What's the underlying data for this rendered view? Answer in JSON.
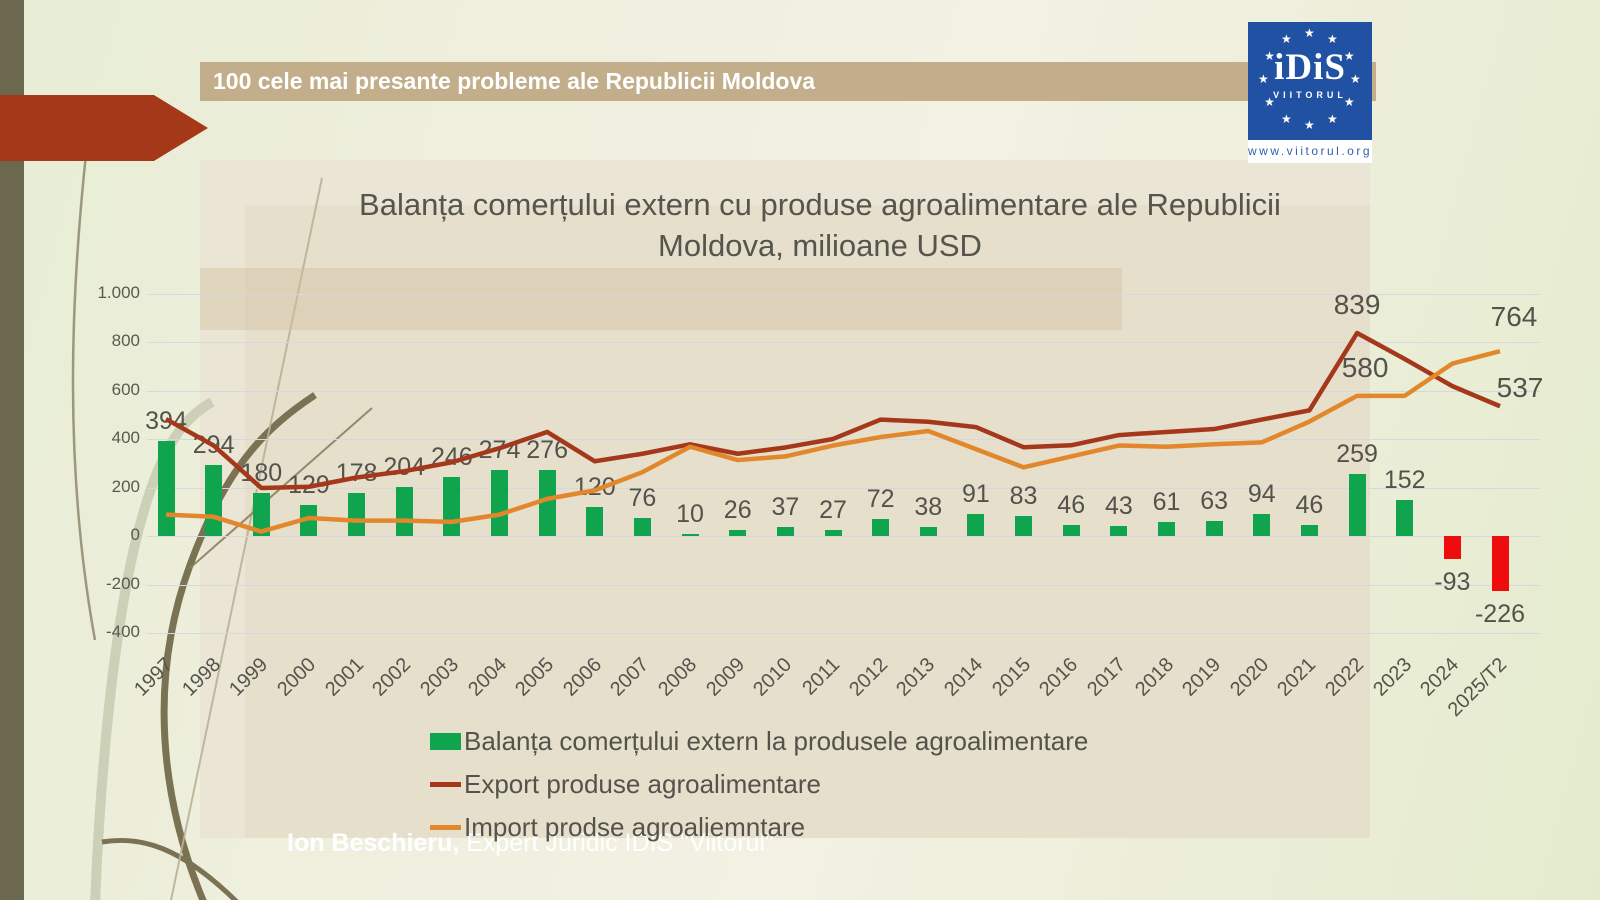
{
  "header": {
    "title": "100 cele mai presante probleme ale Republicii Moldova"
  },
  "logo": {
    "org": "iDiS",
    "suborg": "VIITORUL",
    "url": "www.viitorul.org"
  },
  "slide": {
    "title_line1": "Balanța comerțului extern cu  produse agroalimentare ale Republicii",
    "title_line2": "Moldova, milioane USD",
    "footer_name": "Ion Beschieru,",
    "footer_role": " Expert Juridic IDIS \"Viitorul\""
  },
  "chart_data": {
    "type": "bar+line",
    "title": "Balanța comerțului extern cu produse agroalimentare ale Republicii Moldova, milioane USD",
    "categories": [
      "1997",
      "1998",
      "1999",
      "2000",
      "2001",
      "2002",
      "2003",
      "2004",
      "2005",
      "2006",
      "2007",
      "2008",
      "2009",
      "2010",
      "2011",
      "2012",
      "2013",
      "2014",
      "2015",
      "2016",
      "2017",
      "2018",
      "2019",
      "2020",
      "2021",
      "2022",
      "2023",
      "2024",
      "2025/T2"
    ],
    "series": [
      {
        "name": "Balanța comerțului extern la produsele agroalimentare",
        "type": "bar",
        "values": [
          394,
          294,
          180,
          129,
          178,
          204,
          246,
          274,
          276,
          120,
          76,
          10,
          26,
          37,
          27,
          72,
          38,
          91,
          83,
          46,
          43,
          61,
          63,
          94,
          46,
          259,
          152,
          -93,
          -226
        ]
      },
      {
        "name": "Export produse agroalimentare",
        "type": "line",
        "values": [
          484,
          375,
          200,
          205,
          243,
          269,
          306,
          364,
          431,
          310,
          341,
          380,
          341,
          367,
          402,
          482,
          473,
          451,
          368,
          376,
          418,
          431,
          443,
          482,
          520,
          839,
          732,
          620,
          537
        ]
      },
      {
        "name": "Import prodse agroaliemntare",
        "type": "line",
        "values": [
          90,
          81,
          20,
          76,
          65,
          65,
          60,
          90,
          155,
          190,
          265,
          370,
          315,
          330,
          375,
          410,
          435,
          360,
          285,
          330,
          375,
          370,
          380,
          388,
          474,
          580,
          580,
          713,
          764
        ]
      }
    ],
    "line_labels": [
      {
        "series": "Export produse agroalimentare",
        "category": "2022",
        "value": 839
      },
      {
        "series": "Import prodse agroaliemntare",
        "category": "2022",
        "value": 580
      },
      {
        "series": "Import prodse agroaliemntare",
        "category": "2025/T2",
        "value": 764
      },
      {
        "series": "Export produse agroalimentare",
        "category": "2025/T2",
        "value": 537
      }
    ],
    "y_axis": {
      "tick_labels": [
        "1.000",
        "800",
        "600",
        "400",
        "200",
        "0",
        "-200",
        "-400"
      ],
      "tick_values": [
        1000,
        800,
        600,
        400,
        200,
        0,
        -200,
        -400
      ]
    },
    "ylim": [
      -400,
      1000
    ],
    "grid": true,
    "legend_position": "bottom-left",
    "colors": {
      "bar_positive": "#10a44e",
      "bar_negative": "#ee0c0c",
      "export_line": "#a5381b",
      "import_line": "#e2872b"
    }
  }
}
